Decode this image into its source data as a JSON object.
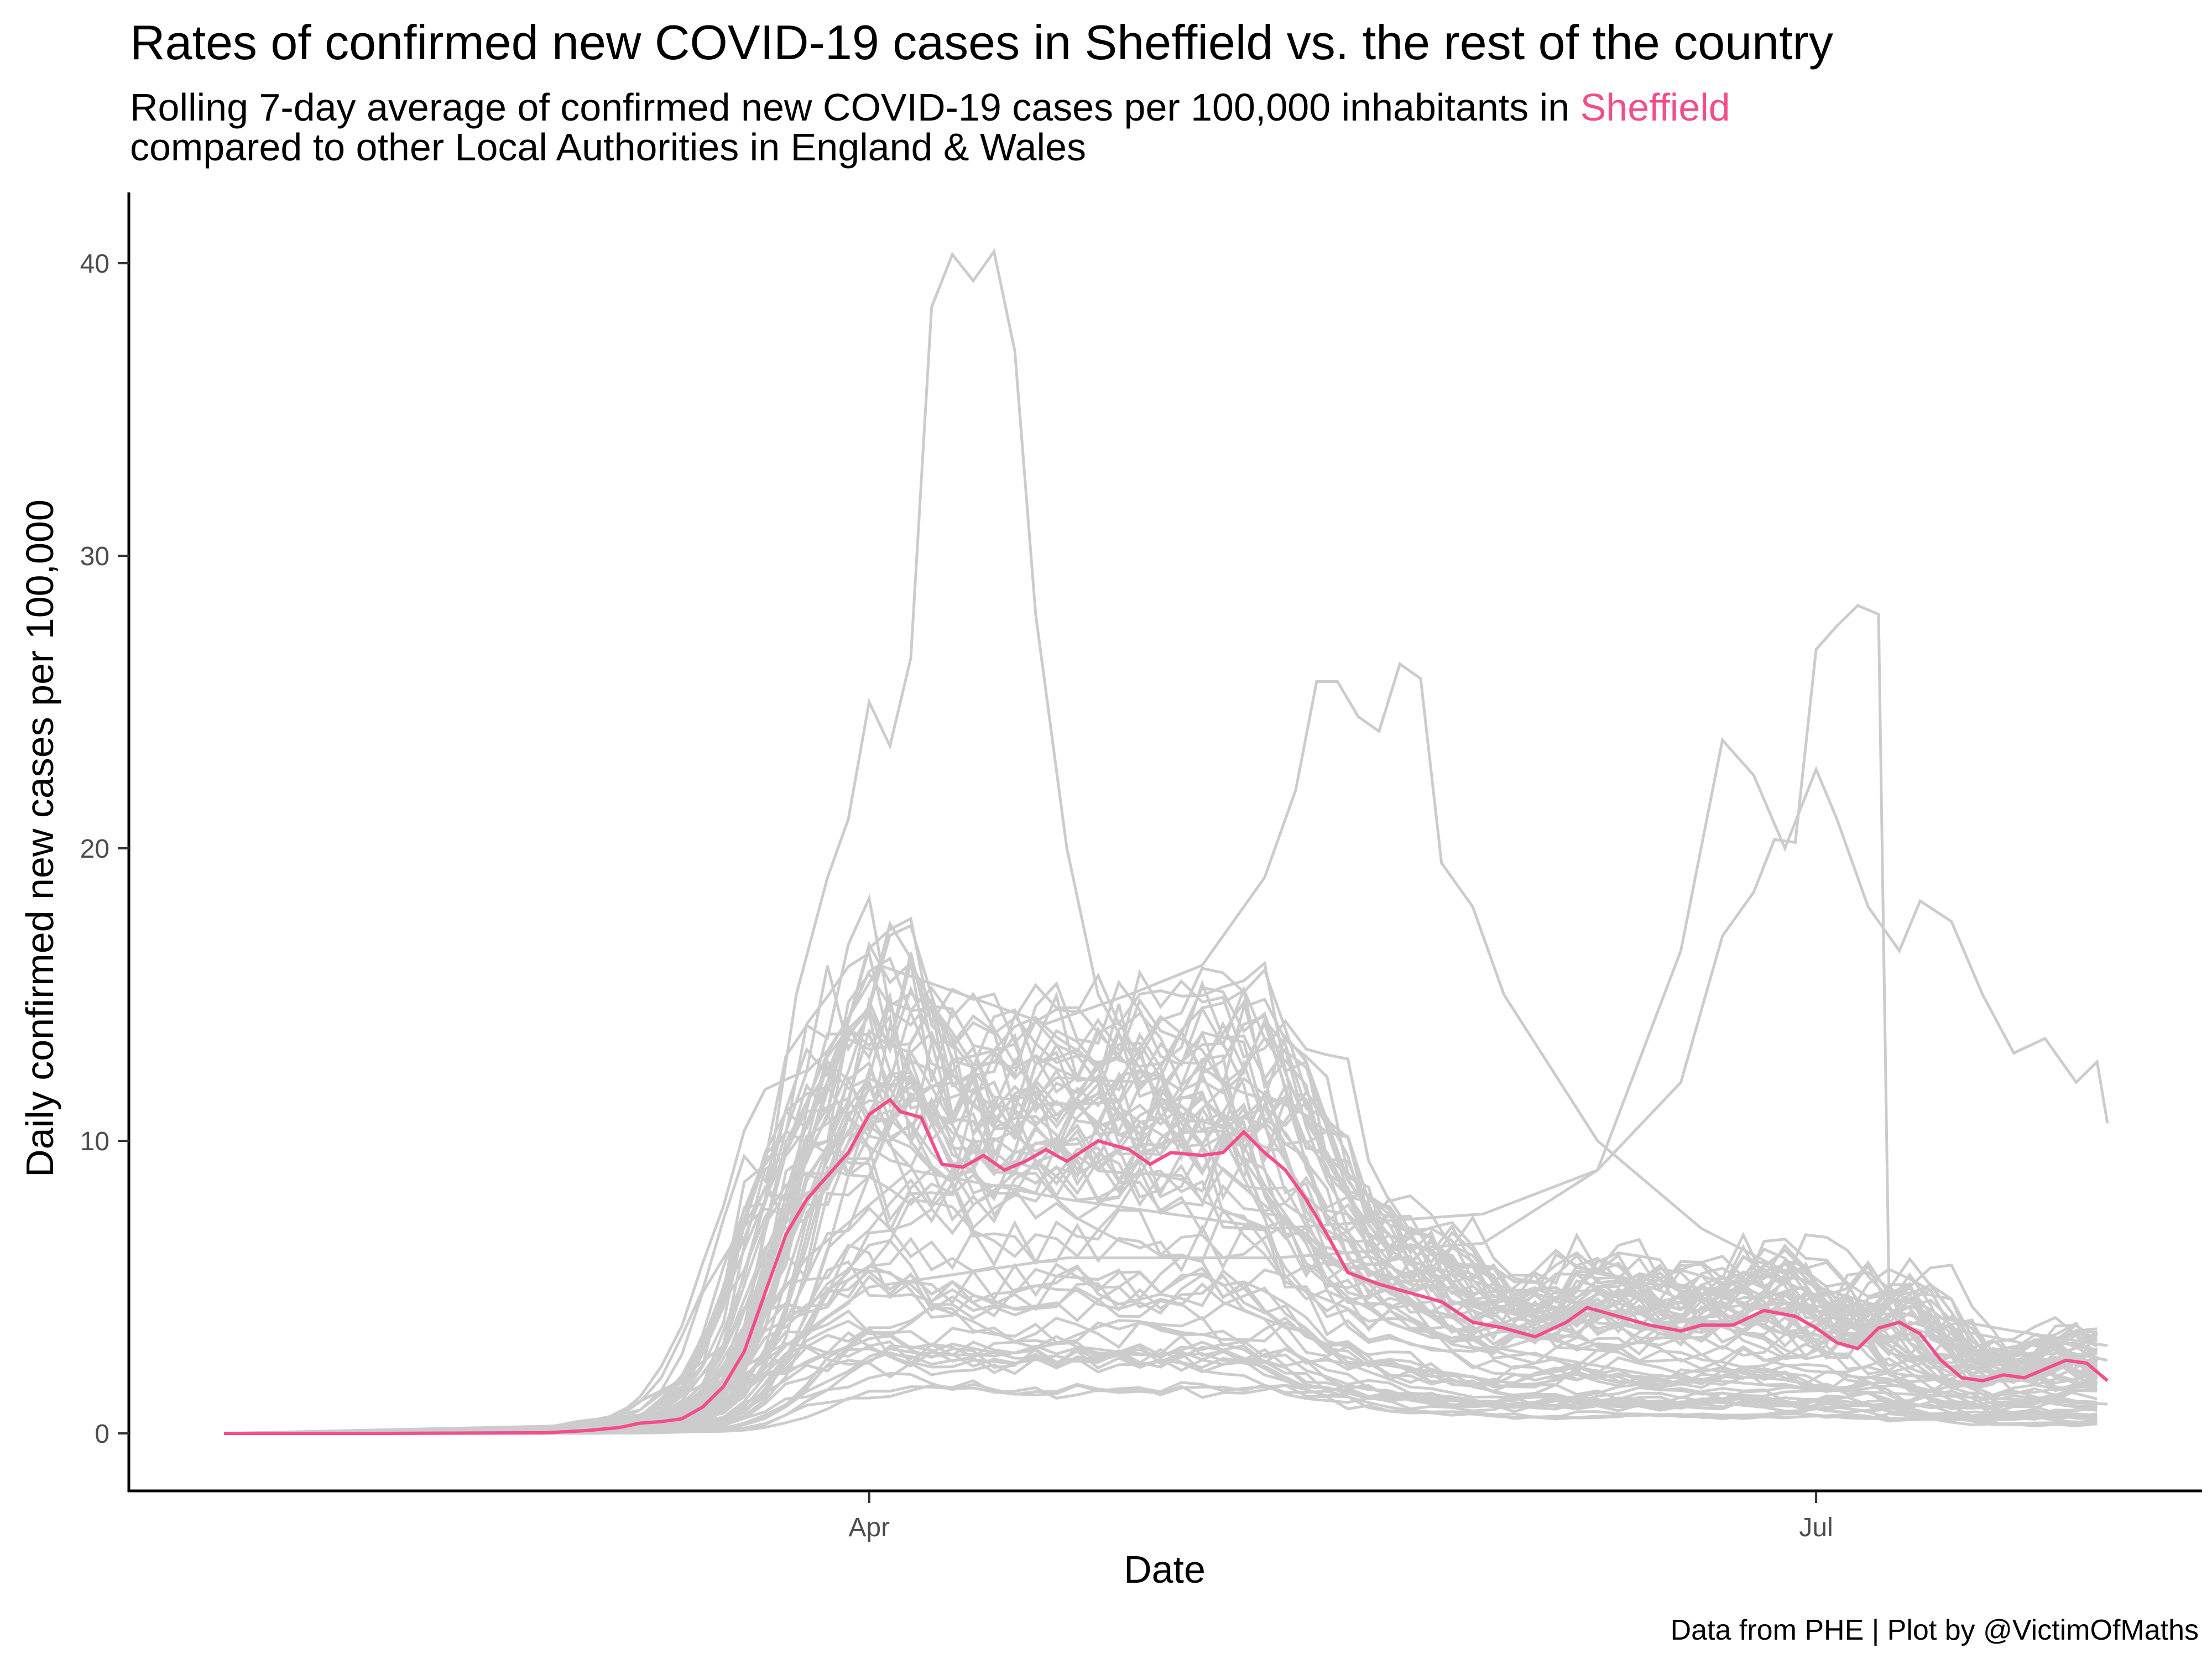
{
  "chart_data": {
    "type": "line",
    "title": "Rates of confirmed new COVID-19 cases in Sheffield vs. the rest of the country",
    "subtitle_line1_prefix": "Rolling 7-day average of confirmed new COVID-19 cases per 100,000 inhabitants in ",
    "subtitle_highlight": "Sheffield",
    "subtitle_line2": "compared to other Local Authorities in England & Wales",
    "xlabel": "Date",
    "ylabel": "Daily confirmed new cases per 100,000",
    "caption": "Data from PHE | Plot by @VictimOfMaths",
    "x_range": [
      "2020-01-30",
      "2020-07-29"
    ],
    "ylim": [
      0,
      42
    ],
    "x_ticks": [
      {
        "date": "2020-04-01",
        "label": "Apr"
      },
      {
        "date": "2020-07-01",
        "label": "Jul"
      }
    ],
    "y_ticks": [
      0,
      10,
      20,
      30,
      40
    ],
    "grid": false,
    "colors": {
      "highlight": "#f24d8c",
      "other": "#cccccc",
      "axis": "#000000"
    },
    "series": [
      {
        "name": "Sheffield",
        "highlight": true,
        "points": [
          [
            "2020-01-30",
            0
          ],
          [
            "2020-02-15",
            0
          ],
          [
            "2020-03-01",
            0.02
          ],
          [
            "2020-03-05",
            0.1
          ],
          [
            "2020-03-08",
            0.2
          ],
          [
            "2020-03-10",
            0.35
          ],
          [
            "2020-03-12",
            0.4
          ],
          [
            "2020-03-14",
            0.5
          ],
          [
            "2020-03-16",
            0.9
          ],
          [
            "2020-03-18",
            1.6
          ],
          [
            "2020-03-20",
            2.8
          ],
          [
            "2020-03-22",
            4.8
          ],
          [
            "2020-03-24",
            6.8
          ],
          [
            "2020-03-26",
            8.0
          ],
          [
            "2020-03-28",
            8.8
          ],
          [
            "2020-03-30",
            9.6
          ],
          [
            "2020-04-01",
            10.9
          ],
          [
            "2020-04-03",
            11.4
          ],
          [
            "2020-04-04",
            11.0
          ],
          [
            "2020-04-06",
            10.8
          ],
          [
            "2020-04-08",
            9.2
          ],
          [
            "2020-04-10",
            9.1
          ],
          [
            "2020-04-12",
            9.5
          ],
          [
            "2020-04-14",
            9.0
          ],
          [
            "2020-04-16",
            9.3
          ],
          [
            "2020-04-18",
            9.7
          ],
          [
            "2020-04-20",
            9.3
          ],
          [
            "2020-04-23",
            10.0
          ],
          [
            "2020-04-26",
            9.7
          ],
          [
            "2020-04-28",
            9.2
          ],
          [
            "2020-04-30",
            9.6
          ],
          [
            "2020-05-03",
            9.5
          ],
          [
            "2020-05-05",
            9.6
          ],
          [
            "2020-05-07",
            10.3
          ],
          [
            "2020-05-09",
            9.6
          ],
          [
            "2020-05-11",
            9.0
          ],
          [
            "2020-05-13",
            8.0
          ],
          [
            "2020-05-15",
            6.8
          ],
          [
            "2020-05-17",
            5.5
          ],
          [
            "2020-05-20",
            5.1
          ],
          [
            "2020-05-23",
            4.8
          ],
          [
            "2020-05-26",
            4.5
          ],
          [
            "2020-05-29",
            3.8
          ],
          [
            "2020-06-01",
            3.6
          ],
          [
            "2020-06-04",
            3.3
          ],
          [
            "2020-06-07",
            3.8
          ],
          [
            "2020-06-09",
            4.3
          ],
          [
            "2020-06-12",
            4.0
          ],
          [
            "2020-06-15",
            3.7
          ],
          [
            "2020-06-18",
            3.5
          ],
          [
            "2020-06-20",
            3.7
          ],
          [
            "2020-06-23",
            3.7
          ],
          [
            "2020-06-26",
            4.2
          ],
          [
            "2020-06-29",
            4.0
          ],
          [
            "2020-07-01",
            3.6
          ],
          [
            "2020-07-03",
            3.1
          ],
          [
            "2020-07-05",
            2.9
          ],
          [
            "2020-07-07",
            3.6
          ],
          [
            "2020-07-09",
            3.8
          ],
          [
            "2020-07-11",
            3.4
          ],
          [
            "2020-07-13",
            2.5
          ],
          [
            "2020-07-15",
            1.9
          ],
          [
            "2020-07-17",
            1.8
          ],
          [
            "2020-07-19",
            2.0
          ],
          [
            "2020-07-21",
            1.9
          ],
          [
            "2020-07-23",
            2.2
          ],
          [
            "2020-07-25",
            2.5
          ],
          [
            "2020-07-27",
            2.4
          ],
          [
            "2020-07-29",
            1.8
          ]
        ]
      },
      {
        "highlight": false,
        "points": [
          [
            "2020-01-30",
            0
          ],
          [
            "2020-03-01",
            0.1
          ],
          [
            "2020-03-10",
            0.8
          ],
          [
            "2020-03-18",
            3.0
          ],
          [
            "2020-03-22",
            8.0
          ],
          [
            "2020-03-25",
            15.0
          ],
          [
            "2020-03-28",
            19.0
          ],
          [
            "2020-03-30",
            21.0
          ],
          [
            "2020-04-01",
            25.0
          ],
          [
            "2020-04-03",
            23.5
          ],
          [
            "2020-04-05",
            26.5
          ],
          [
            "2020-04-07",
            38.5
          ],
          [
            "2020-04-09",
            40.3
          ],
          [
            "2020-04-11",
            39.4
          ],
          [
            "2020-04-13",
            40.4
          ],
          [
            "2020-04-15",
            37.0
          ],
          [
            "2020-04-17",
            28.0
          ],
          [
            "2020-04-20",
            20.0
          ],
          [
            "2020-04-23",
            15.0
          ],
          [
            "2020-04-26",
            13.0
          ],
          [
            "2020-04-30",
            11.0
          ],
          [
            "2020-05-05",
            9.0
          ],
          [
            "2020-05-15",
            6.0
          ],
          [
            "2020-05-30",
            3.0
          ],
          [
            "2020-06-15",
            2.0
          ],
          [
            "2020-07-01",
            1.5
          ],
          [
            "2020-07-29",
            1.0
          ]
        ]
      },
      {
        "highlight": false,
        "points": [
          [
            "2020-01-30",
            0
          ],
          [
            "2020-03-05",
            0.2
          ],
          [
            "2020-03-15",
            2.0
          ],
          [
            "2020-03-22",
            8.0
          ],
          [
            "2020-03-28",
            13.0
          ],
          [
            "2020-04-02",
            16.0
          ],
          [
            "2020-04-10",
            15.0
          ],
          [
            "2020-04-18",
            14.0
          ],
          [
            "2020-04-26",
            15.0
          ],
          [
            "2020-05-03",
            16.0
          ],
          [
            "2020-05-09",
            19.0
          ],
          [
            "2020-05-12",
            22.0
          ],
          [
            "2020-05-14",
            25.7
          ],
          [
            "2020-05-16",
            25.7
          ],
          [
            "2020-05-18",
            24.5
          ],
          [
            "2020-05-20",
            24.0
          ],
          [
            "2020-05-22",
            26.3
          ],
          [
            "2020-05-24",
            25.8
          ],
          [
            "2020-05-26",
            19.5
          ],
          [
            "2020-05-29",
            18.0
          ],
          [
            "2020-06-01",
            15.0
          ],
          [
            "2020-06-10",
            10.0
          ],
          [
            "2020-06-20",
            7.0
          ],
          [
            "2020-07-01",
            5.0
          ],
          [
            "2020-07-15",
            3.5
          ],
          [
            "2020-07-29",
            2.5
          ]
        ]
      },
      {
        "highlight": false,
        "points": [
          [
            "2020-01-30",
            0
          ],
          [
            "2020-03-08",
            0.3
          ],
          [
            "2020-03-18",
            2.0
          ],
          [
            "2020-03-26",
            6.0
          ],
          [
            "2020-04-05",
            9.0
          ],
          [
            "2020-04-20",
            8.0
          ],
          [
            "2020-05-10",
            7.0
          ],
          [
            "2020-05-30",
            7.5
          ],
          [
            "2020-06-10",
            9.0
          ],
          [
            "2020-06-18",
            12.0
          ],
          [
            "2020-06-22",
            17.0
          ],
          [
            "2020-06-25",
            18.5
          ],
          [
            "2020-06-27",
            20.3
          ],
          [
            "2020-06-29",
            20.2
          ],
          [
            "2020-07-01",
            26.8
          ],
          [
            "2020-07-03",
            27.6
          ],
          [
            "2020-07-05",
            28.3
          ],
          [
            "2020-07-07",
            28.0
          ],
          [
            "2020-07-08",
            5.0
          ],
          [
            "2020-07-12",
            4.0
          ],
          [
            "2020-07-20",
            3.5
          ],
          [
            "2020-07-29",
            3.0
          ]
        ]
      },
      {
        "highlight": false,
        "points": [
          [
            "2020-01-30",
            0
          ],
          [
            "2020-03-10",
            0.2
          ],
          [
            "2020-03-20",
            2.0
          ],
          [
            "2020-04-01",
            5.0
          ],
          [
            "2020-04-20",
            6.0
          ],
          [
            "2020-05-10",
            6.0
          ],
          [
            "2020-05-30",
            6.5
          ],
          [
            "2020-06-10",
            9.0
          ],
          [
            "2020-06-18",
            16.5
          ],
          [
            "2020-06-22",
            23.7
          ],
          [
            "2020-06-25",
            22.5
          ],
          [
            "2020-06-28",
            20.0
          ],
          [
            "2020-07-01",
            22.7
          ],
          [
            "2020-07-03",
            21.0
          ],
          [
            "2020-07-06",
            18.0
          ],
          [
            "2020-07-09",
            16.5
          ],
          [
            "2020-07-11",
            18.2
          ],
          [
            "2020-07-14",
            17.5
          ],
          [
            "2020-07-17",
            15.0
          ],
          [
            "2020-07-20",
            13.0
          ],
          [
            "2020-07-23",
            13.5
          ],
          [
            "2020-07-26",
            12.0
          ],
          [
            "2020-07-28",
            12.7
          ],
          [
            "2020-07-29",
            10.6
          ]
        ]
      }
    ]
  }
}
